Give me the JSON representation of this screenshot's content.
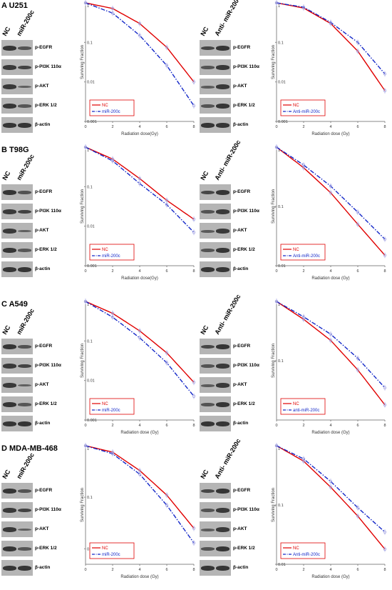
{
  "figure": {
    "panels": [
      {
        "id": "A",
        "letter": "A",
        "cell_line": "U251",
        "blot_left": {
          "columns": [
            "NC",
            "miR-200c"
          ],
          "rows": [
            "p-EGFR",
            "p-PI3K 110α",
            "p-AKT",
            "p-ERK 1/2",
            "β-actin"
          ]
        },
        "blot_right": {
          "columns": [
            "NC",
            "Anti-\nmiR-200c"
          ],
          "rows": [
            "p-EGFR",
            "p-PI3K 110α",
            "p-AKT",
            "p-ERK 1/2",
            "β-actin"
          ]
        }
      },
      {
        "id": "B",
        "letter": "B",
        "cell_line": "T98G",
        "blot_left": {
          "columns": [
            "NC",
            "miR-200c"
          ],
          "rows": [
            "p-EGFR",
            "p-PI3K 110α",
            "p-AKT",
            "p-ERK 1/2",
            "β-actin"
          ]
        },
        "blot_right": {
          "columns": [
            "NC",
            "Anti-\nmiR-200c"
          ],
          "rows": [
            "p-EGFR",
            "p-PI3K 110α",
            "p-AKT",
            "p-ERK 1/2",
            "β-actin"
          ]
        }
      },
      {
        "id": "C",
        "letter": "C",
        "cell_line": "A549",
        "blot_left": {
          "columns": [
            "NC",
            "miR-200c"
          ],
          "rows": [
            "p-EGFR",
            "p-PI3K 110α",
            "p-AKT",
            "p-ERK 1/2",
            "β-actin"
          ]
        },
        "blot_right": {
          "columns": [
            "NC",
            "Anti-\nmiR-200c"
          ],
          "rows": [
            "p-EGFR",
            "p-PI3K 110α",
            "p-AKT",
            "p-ERK 1/2",
            "β-actin"
          ]
        }
      },
      {
        "id": "D",
        "letter": "D",
        "cell_line": "MDA-MB-468",
        "blot_left": {
          "columns": [
            "NC",
            "miR-200c"
          ],
          "rows": [
            "p-EGFR",
            "p-PI3K 110α",
            "p-AKT",
            "p-ERK 1/2",
            "β-actin"
          ]
        },
        "blot_right": {
          "columns": [
            "NC",
            "Anti-\nmiR-200c"
          ],
          "rows": [
            "p-EGFR",
            "p-PI3K 110α",
            "p-AKT",
            "p-ERK 1/2",
            "β-actin"
          ]
        }
      }
    ],
    "colors": {
      "nc": "#e00000",
      "treated": "#1428c8",
      "blot_bg": "#b5b5b5",
      "band": "#2a2a2a"
    }
  },
  "chart_data": [
    {
      "id": "A-left",
      "type": "line",
      "scale": "log",
      "xlabel": "Radiation dose(Gy)",
      "ylabel": "Surviving Fraction",
      "x_ticks": [
        "0",
        "2",
        "4",
        "6",
        "8"
      ],
      "y_ticks": [
        "1",
        "0.1",
        "0.01",
        "0.001"
      ],
      "xlim": [
        0,
        8
      ],
      "ylim": [
        0.001,
        1
      ],
      "legend": "bottom-left",
      "series": [
        {
          "name": "NC",
          "style": "solid",
          "x": [
            0,
            2,
            4,
            6,
            8
          ],
          "y": [
            1,
            0.72,
            0.3,
            0.075,
            0.01
          ]
        },
        {
          "name": "miR-200c",
          "style": "dash-dot",
          "x": [
            0,
            2,
            4,
            6,
            8
          ],
          "y": [
            1,
            0.55,
            0.15,
            0.026,
            0.0025
          ]
        }
      ]
    },
    {
      "id": "A-right",
      "type": "line",
      "scale": "log",
      "xlabel": "Radiation dose (Gy)",
      "ylabel": "Surviving Fraction",
      "x_ticks": [
        "0",
        "2",
        "4",
        "6",
        "8"
      ],
      "y_ticks": [
        "1",
        "0.1",
        "0.01",
        "0.001"
      ],
      "xlim": [
        0,
        8
      ],
      "ylim": [
        0.001,
        1
      ],
      "legend": "bottom-left",
      "series": [
        {
          "name": "NC",
          "style": "solid",
          "x": [
            0,
            2,
            4,
            6,
            8
          ],
          "y": [
            1,
            0.74,
            0.3,
            0.06,
            0.006
          ]
        },
        {
          "name": "Anti-miR-200c",
          "style": "dash-dot",
          "x": [
            0,
            2,
            4,
            6,
            8
          ],
          "y": [
            1,
            0.78,
            0.32,
            0.1,
            0.016
          ]
        }
      ]
    },
    {
      "id": "B-left",
      "type": "line",
      "scale": "log",
      "xlabel": "Radiation dose(Gy)",
      "ylabel": "Surviving Fraction",
      "x_ticks": [
        "0",
        "2",
        "4",
        "6",
        "8"
      ],
      "y_ticks": [
        "1",
        "0.1",
        "0.01",
        "0.001"
      ],
      "xlim": [
        0,
        8
      ],
      "ylim": [
        0.001,
        1
      ],
      "legend": "bottom-left",
      "series": [
        {
          "name": "NC",
          "style": "solid",
          "x": [
            0,
            2,
            4,
            6,
            8
          ],
          "y": [
            1,
            0.5,
            0.16,
            0.045,
            0.015
          ]
        },
        {
          "name": "miR-200c",
          "style": "dash-dot",
          "x": [
            0,
            2,
            4,
            6,
            8
          ],
          "y": [
            1,
            0.45,
            0.12,
            0.035,
            0.007
          ]
        }
      ]
    },
    {
      "id": "B-right",
      "type": "line",
      "scale": "log",
      "xlabel": "Radiation dose (Gy)",
      "ylabel": "Surviving Fraction",
      "x_ticks": [
        "0",
        "2",
        "4",
        "6",
        "8"
      ],
      "y_ticks": [
        "1",
        "0.1",
        "0.01"
      ],
      "xlim": [
        0,
        8
      ],
      "ylim": [
        0.01,
        1
      ],
      "legend": "bottom-left",
      "series": [
        {
          "name": "NC",
          "style": "solid",
          "x": [
            0,
            2,
            4,
            6,
            8
          ],
          "y": [
            1,
            0.45,
            0.17,
            0.05,
            0.015
          ]
        },
        {
          "name": "Anti-miR-200c",
          "style": "dash-dot",
          "x": [
            0,
            2,
            4,
            6,
            8
          ],
          "y": [
            1,
            0.5,
            0.22,
            0.08,
            0.028
          ]
        }
      ]
    },
    {
      "id": "C-left",
      "type": "line",
      "scale": "log",
      "xlabel": "Radiation dose (Gy)",
      "ylabel": "Surviving Fraction",
      "x_ticks": [
        "0",
        "2",
        "4",
        "6",
        "8"
      ],
      "y_ticks": [
        "1",
        "0.1",
        "0.01",
        "0.001"
      ],
      "xlim": [
        0,
        8
      ],
      "ylim": [
        0.001,
        1
      ],
      "legend": "bottom-left",
      "series": [
        {
          "name": "NC",
          "style": "solid",
          "x": [
            0,
            2,
            4,
            6,
            8
          ],
          "y": [
            1,
            0.5,
            0.18,
            0.05,
            0.009
          ]
        },
        {
          "name": "miR-200c",
          "style": "dash-dot",
          "x": [
            0,
            2,
            4,
            6,
            8
          ],
          "y": [
            1,
            0.4,
            0.12,
            0.028,
            0.004
          ]
        }
      ]
    },
    {
      "id": "C-right",
      "type": "line",
      "scale": "log",
      "xlabel": "Radiation dose (Gy)",
      "ylabel": "Surviving Fraction",
      "x_ticks": [
        "0",
        "2",
        "4",
        "6",
        "8"
      ],
      "y_ticks": [
        "1",
        "0.1"
      ],
      "xlim": [
        0,
        8
      ],
      "ylim": [
        0.01,
        1
      ],
      "legend": "bottom-left",
      "series": [
        {
          "name": "NC",
          "style": "solid",
          "x": [
            0,
            2,
            4,
            6,
            8
          ],
          "y": [
            1,
            0.5,
            0.22,
            0.07,
            0.018
          ]
        },
        {
          "name": "anti-miR-200c",
          "style": "dash-dot",
          "x": [
            0,
            2,
            4,
            6,
            8
          ],
          "y": [
            1,
            0.55,
            0.28,
            0.11,
            0.035
          ]
        }
      ]
    },
    {
      "id": "D-left",
      "type": "line",
      "scale": "log",
      "xlabel": "Radiation dose (Gy)",
      "ylabel": "Surviving Fraction",
      "x_ticks": [
        "0",
        "2",
        "4",
        "6",
        "8"
      ],
      "y_ticks": [
        "1",
        "0.1",
        "0.01"
      ],
      "xlim": [
        0,
        8
      ],
      "ylim": [
        0.005,
        1
      ],
      "legend": "bottom-left",
      "series": [
        {
          "name": "NC",
          "style": "solid",
          "x": [
            0,
            2,
            4,
            6,
            8
          ],
          "y": [
            1,
            0.75,
            0.33,
            0.11,
            0.025
          ]
        },
        {
          "name": "miR-200c",
          "style": "dash-dot",
          "x": [
            0,
            2,
            4,
            6,
            8
          ],
          "y": [
            1,
            0.7,
            0.28,
            0.07,
            0.013
          ]
        }
      ]
    },
    {
      "id": "D-right",
      "type": "line",
      "scale": "log",
      "xlabel": "Radiation dose (Gy)",
      "ylabel": "Surviving Fraction",
      "x_ticks": [
        "0",
        "2",
        "4",
        "6",
        "8"
      ],
      "y_ticks": [
        "1",
        "0.1",
        "0.01"
      ],
      "xlim": [
        0,
        8
      ],
      "ylim": [
        0.01,
        1
      ],
      "legend": "bottom-left",
      "series": [
        {
          "name": "NC",
          "style": "solid",
          "x": [
            0,
            2,
            4,
            6,
            8
          ],
          "y": [
            1,
            0.55,
            0.2,
            0.065,
            0.018
          ]
        },
        {
          "name": "Anti-miR-200c",
          "style": "dash-dot",
          "x": [
            0,
            2,
            4,
            6,
            8
          ],
          "y": [
            1,
            0.6,
            0.25,
            0.09,
            0.035
          ]
        }
      ]
    }
  ]
}
